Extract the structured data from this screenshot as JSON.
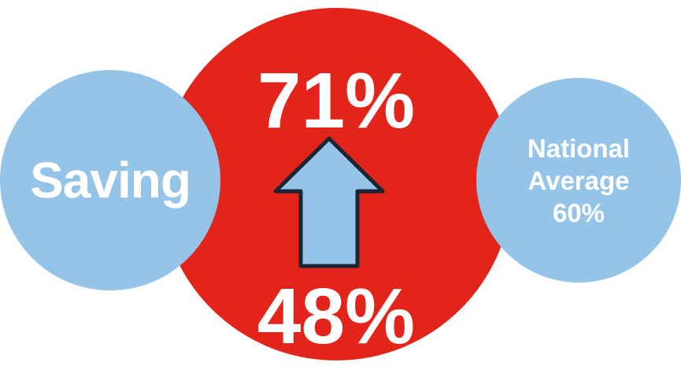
{
  "colors": {
    "accent_red": "#e3241b",
    "light_blue": "#94c4e8",
    "arrow_stroke": "#1a2535",
    "text": "#ffffff"
  },
  "center": {
    "top_value": "71%",
    "bottom_value": "48%"
  },
  "left": {
    "label": "Saving"
  },
  "right": {
    "line1": "National",
    "line2": "Average",
    "line3": "60%"
  },
  "arrow": {
    "icon": "up-arrow-icon",
    "direction": "up"
  }
}
